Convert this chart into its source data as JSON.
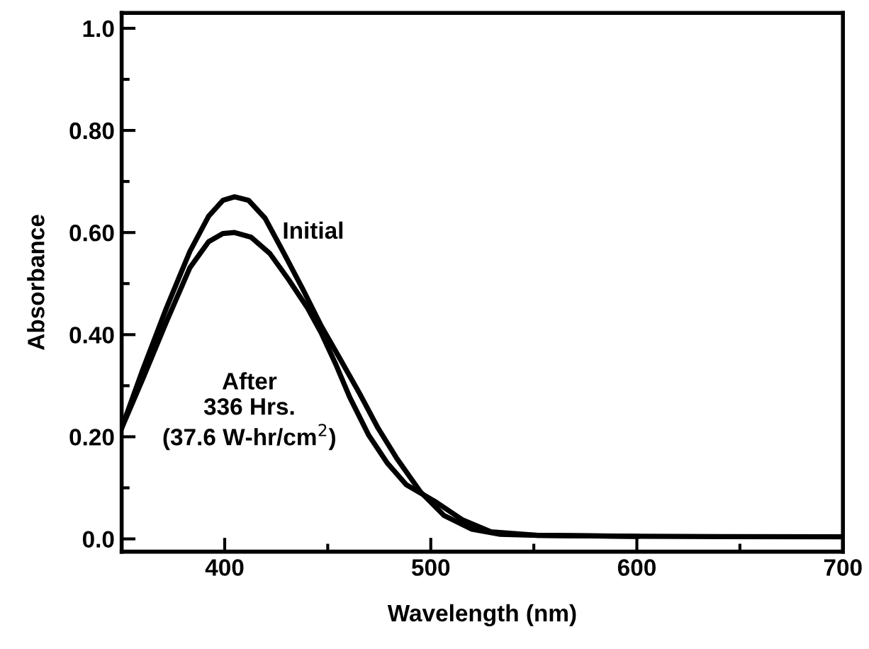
{
  "chart_data": {
    "type": "line",
    "xlabel": "Wavelength (nm)",
    "ylabel": "Absorbance",
    "xlim": [
      350,
      700
    ],
    "xticks": [
      400,
      500,
      600,
      700
    ],
    "ylim": [
      -0.025,
      1.03
    ],
    "yticks": [
      {
        "value": 0,
        "label": "0.0"
      },
      {
        "value": 0.2,
        "label": "0.20"
      },
      {
        "value": 0.4,
        "label": "0.40"
      },
      {
        "value": 0.6,
        "label": "0.60"
      },
      {
        "value": 0.8,
        "label": "0.80"
      },
      {
        "value": 1.0,
        "label": "1.0"
      }
    ],
    "grid": false,
    "legend": false,
    "marker": "none",
    "line_style": "solid",
    "series": [
      {
        "name": "Initial",
        "color": "#000000",
        "x": [
          350,
          360.3,
          371.7,
          383.1,
          392.2,
          399.1,
          404.8,
          411.6,
          419.6,
          428.8,
          437.9,
          447,
          456.2,
          465.3,
          474.4,
          483.6,
          495,
          506.4,
          520,
          533.8,
          552,
          600,
          700
        ],
        "values": [
          0.217,
          0.332,
          0.452,
          0.563,
          0.632,
          0.663,
          0.67,
          0.663,
          0.628,
          0.559,
          0.489,
          0.416,
          0.351,
          0.286,
          0.217,
          0.157,
          0.092,
          0.046,
          0.019,
          0.009,
          0.007,
          0.005,
          0.004
        ]
      },
      {
        "name": "After 336 Hrs. (37.6 W-hr/cm$^{2}$)",
        "color": "#000000",
        "x": [
          350,
          360.3,
          371.7,
          383.1,
          392.2,
          399.1,
          404.8,
          412.8,
          421.9,
          431,
          440.2,
          447,
          453.9,
          460.7,
          469.9,
          479,
          488.1,
          501.8,
          515.5,
          529.2,
          552,
          600
        ],
        "values": [
          0.217,
          0.314,
          0.425,
          0.531,
          0.582,
          0.598,
          0.6,
          0.591,
          0.559,
          0.508,
          0.452,
          0.402,
          0.342,
          0.277,
          0.203,
          0.148,
          0.106,
          0.074,
          0.037,
          0.014,
          0.007,
          0.005
        ]
      }
    ]
  }
}
